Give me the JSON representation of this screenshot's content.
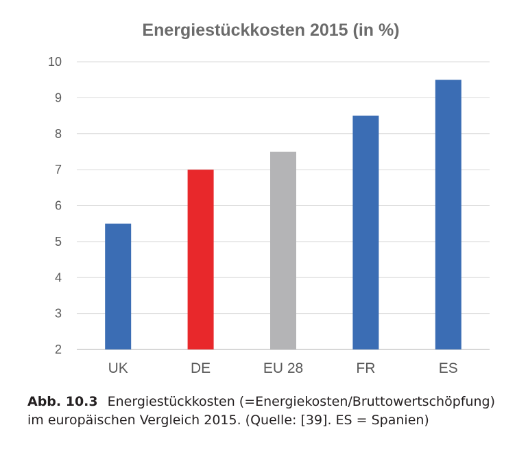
{
  "chart_data": {
    "type": "bar",
    "title": "Energiestückkosten 2015 (in %)",
    "categories": [
      "UK",
      "DE",
      "EU 28",
      "FR",
      "ES"
    ],
    "values": [
      5.5,
      7.0,
      7.5,
      8.5,
      9.5
    ],
    "colors": [
      "#3b6db4",
      "#e8282b",
      "#b4b4b6",
      "#3b6db4",
      "#3b6db4"
    ],
    "ylim": [
      2,
      10
    ],
    "yticks": [
      "2",
      "3",
      "4",
      "5",
      "6",
      "7",
      "8",
      "9",
      "10"
    ],
    "xlabel": "",
    "ylabel": "",
    "grid": true
  },
  "caption": {
    "label": "Abb. 10.3",
    "text": "Energiestückkosten (=Energiekosten/Bruttowertschöpfung) im europäischen Vergleich 2015. (Quelle: [39]. ES = Spanien)"
  }
}
